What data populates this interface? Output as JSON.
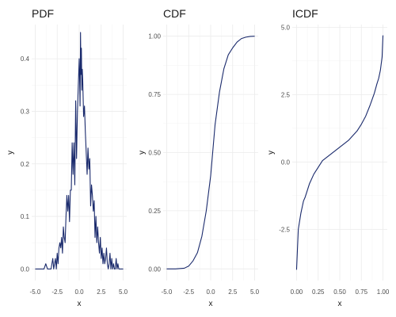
{
  "series_color": "#1a2a6c",
  "chart_data": [
    {
      "type": "line",
      "title": "PDF",
      "xlabel": "x",
      "ylabel": "y",
      "xlim": [
        -5.4,
        5.4
      ],
      "ylim": [
        -0.022,
        0.465
      ],
      "xticks": [
        -5,
        -2.5,
        0,
        2.5,
        5
      ],
      "xtick_labels": [
        "-5.0",
        "-2.5",
        "0.0",
        "2.5",
        "5.0"
      ],
      "yticks": [
        0,
        0.1,
        0.2,
        0.3,
        0.4
      ],
      "ytick_labels": [
        "0.0",
        "0.1",
        "0.2",
        "0.3",
        "0.4"
      ],
      "grid": true,
      "series": [
        {
          "x": [
            -5.0,
            -4.5,
            -4.0,
            -3.8,
            -3.6,
            -3.4,
            -3.2,
            -3.0,
            -2.9,
            -2.8,
            -2.7,
            -2.6,
            -2.5,
            -2.4,
            -2.3,
            -2.2,
            -2.1,
            -2.0,
            -1.9,
            -1.8,
            -1.7,
            -1.6,
            -1.5,
            -1.4,
            -1.3,
            -1.2,
            -1.1,
            -1.0,
            -0.9,
            -0.8,
            -0.7,
            -0.6,
            -0.5,
            -0.4,
            -0.3,
            -0.2,
            -0.1,
            0.0,
            0.05,
            0.1,
            0.15,
            0.2,
            0.25,
            0.3,
            0.35,
            0.4,
            0.5,
            0.6,
            0.7,
            0.8,
            0.9,
            1.0,
            1.1,
            1.2,
            1.3,
            1.4,
            1.5,
            1.6,
            1.7,
            1.8,
            1.9,
            2.0,
            2.1,
            2.2,
            2.3,
            2.4,
            2.5,
            2.6,
            2.7,
            2.8,
            2.9,
            3.0,
            3.1,
            3.2,
            3.3,
            3.4,
            3.5,
            3.6,
            3.7,
            3.8,
            3.9,
            4.0,
            4.1,
            4.2,
            4.3,
            4.4,
            4.5,
            4.6,
            4.7,
            4.8,
            4.9,
            5.0
          ],
          "y": [
            0.0,
            0.0,
            0.0,
            0.01,
            0.0,
            0.0,
            0.0,
            0.02,
            0.0,
            0.01,
            0.02,
            0.0,
            0.03,
            0.01,
            0.04,
            0.05,
            0.04,
            0.06,
            0.03,
            0.08,
            0.06,
            0.05,
            0.1,
            0.14,
            0.11,
            0.14,
            0.09,
            0.15,
            0.15,
            0.24,
            0.18,
            0.24,
            0.16,
            0.32,
            0.21,
            0.3,
            0.35,
            0.4,
            0.36,
            0.31,
            0.45,
            0.37,
            0.42,
            0.34,
            0.38,
            0.36,
            0.29,
            0.31,
            0.26,
            0.22,
            0.18,
            0.23,
            0.19,
            0.21,
            0.12,
            0.16,
            0.14,
            0.11,
            0.13,
            0.06,
            0.1,
            0.05,
            0.08,
            0.05,
            0.03,
            0.06,
            0.02,
            0.04,
            0.01,
            0.03,
            0.01,
            0.02,
            0.04,
            0.01,
            0.0,
            0.01,
            0.03,
            0.0,
            0.02,
            0.0,
            0.01,
            0.0,
            0.0,
            0.02,
            0.0,
            0.01,
            0.0,
            0.0,
            0.0,
            0.0,
            0.0,
            0.0
          ]
        }
      ]
    },
    {
      "type": "line",
      "title": "CDF",
      "xlabel": "x",
      "ylabel": "y",
      "xlim": [
        -5.4,
        5.4
      ],
      "ylim": [
        -0.05,
        1.05
      ],
      "xticks": [
        -5,
        -2.5,
        0,
        2.5,
        5
      ],
      "xtick_labels": [
        "-5.0",
        "-2.5",
        "0.0",
        "2.5",
        "5.0"
      ],
      "yticks": [
        0,
        0.25,
        0.5,
        0.75,
        1.0
      ],
      "ytick_labels": [
        "0.00",
        "0.25",
        "0.50",
        "0.75",
        "1.00"
      ],
      "grid": true,
      "series": [
        {
          "x": [
            -5.0,
            -4.0,
            -3.0,
            -2.5,
            -2.0,
            -1.5,
            -1.0,
            -0.5,
            0.0,
            0.5,
            1.0,
            1.5,
            2.0,
            2.5,
            3.0,
            3.5,
            4.0,
            4.5,
            5.0
          ],
          "y": [
            0.0,
            0.0,
            0.003,
            0.012,
            0.035,
            0.07,
            0.14,
            0.25,
            0.4,
            0.62,
            0.76,
            0.86,
            0.92,
            0.95,
            0.975,
            0.99,
            0.996,
            0.999,
            1.0
          ]
        }
      ]
    },
    {
      "type": "line",
      "title": "ICDF",
      "xlabel": "x",
      "ylabel": "y",
      "xlim": [
        -0.05,
        1.05
      ],
      "ylim": [
        -4.4,
        5.1
      ],
      "xticks": [
        0,
        0.25,
        0.5,
        0.75,
        1.0
      ],
      "xtick_labels": [
        "0.00",
        "0.25",
        "0.50",
        "0.75",
        "1.00"
      ],
      "yticks": [
        -2.5,
        0,
        2.5,
        5.0
      ],
      "ytick_labels": [
        "-2.5",
        "0.0",
        "2.5",
        "5.0"
      ],
      "grid": true,
      "series": [
        {
          "x": [
            0.0,
            0.02,
            0.05,
            0.08,
            0.1,
            0.15,
            0.2,
            0.25,
            0.3,
            0.4,
            0.5,
            0.6,
            0.7,
            0.75,
            0.8,
            0.85,
            0.9,
            0.93,
            0.95,
            0.97,
            0.99,
            1.0
          ],
          "y": [
            -4.0,
            -2.5,
            -1.9,
            -1.45,
            -1.3,
            -0.8,
            -0.45,
            -0.2,
            0.05,
            0.3,
            0.55,
            0.8,
            1.15,
            1.4,
            1.7,
            2.1,
            2.55,
            2.9,
            3.1,
            3.4,
            3.9,
            4.7
          ]
        }
      ]
    }
  ]
}
